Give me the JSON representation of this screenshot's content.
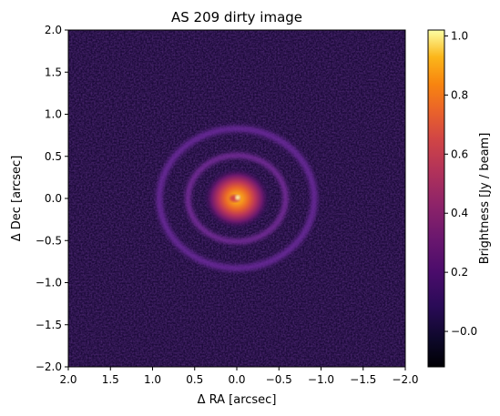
{
  "chart_data": {
    "type": "heatmap",
    "title": "AS 209 dirty image",
    "xlabel": "Δ RA [arcsec]",
    "ylabel": "Δ Dec [arcsec]",
    "xlim": [
      2.0,
      -2.0
    ],
    "ylim": [
      -2.0,
      2.0
    ],
    "x_ticks": [
      2.0,
      1.5,
      1.0,
      0.5,
      0.0,
      -0.5,
      -1.0,
      -1.5,
      -2.0
    ],
    "x_tick_labels": [
      "2.0",
      "1.5",
      "1.0",
      "0.5",
      "0.0",
      "−0.5",
      "−1.0",
      "−1.5",
      "−2.0"
    ],
    "y_ticks": [
      2.0,
      1.5,
      1.0,
      0.5,
      0.0,
      -0.5,
      -1.0,
      -1.5,
      -2.0
    ],
    "y_tick_labels": [
      "2.0",
      "1.5",
      "1.0",
      "0.5",
      "0.0",
      "−0.5",
      "−1.0",
      "−1.5",
      "−2.0"
    ],
    "colormap": "inferno",
    "colorbar": {
      "label": "Brightness [Jy / beam]",
      "range": [
        -0.12,
        1.02
      ],
      "ticks": [
        -0.0,
        0.2,
        0.4,
        0.6,
        0.8,
        1.0
      ],
      "tick_labels": [
        "−0.0",
        "0.2",
        "0.4",
        "0.6",
        "0.8",
        "1.0"
      ]
    },
    "structure": {
      "center": [
        0.0,
        0.0
      ],
      "core_radius_arcsec": 0.4,
      "core_peak": 1.0,
      "ring_radii_arcsec": [
        0.58,
        0.92
      ],
      "ring_brightness": [
        0.22,
        0.18
      ],
      "background": 0.0
    }
  }
}
